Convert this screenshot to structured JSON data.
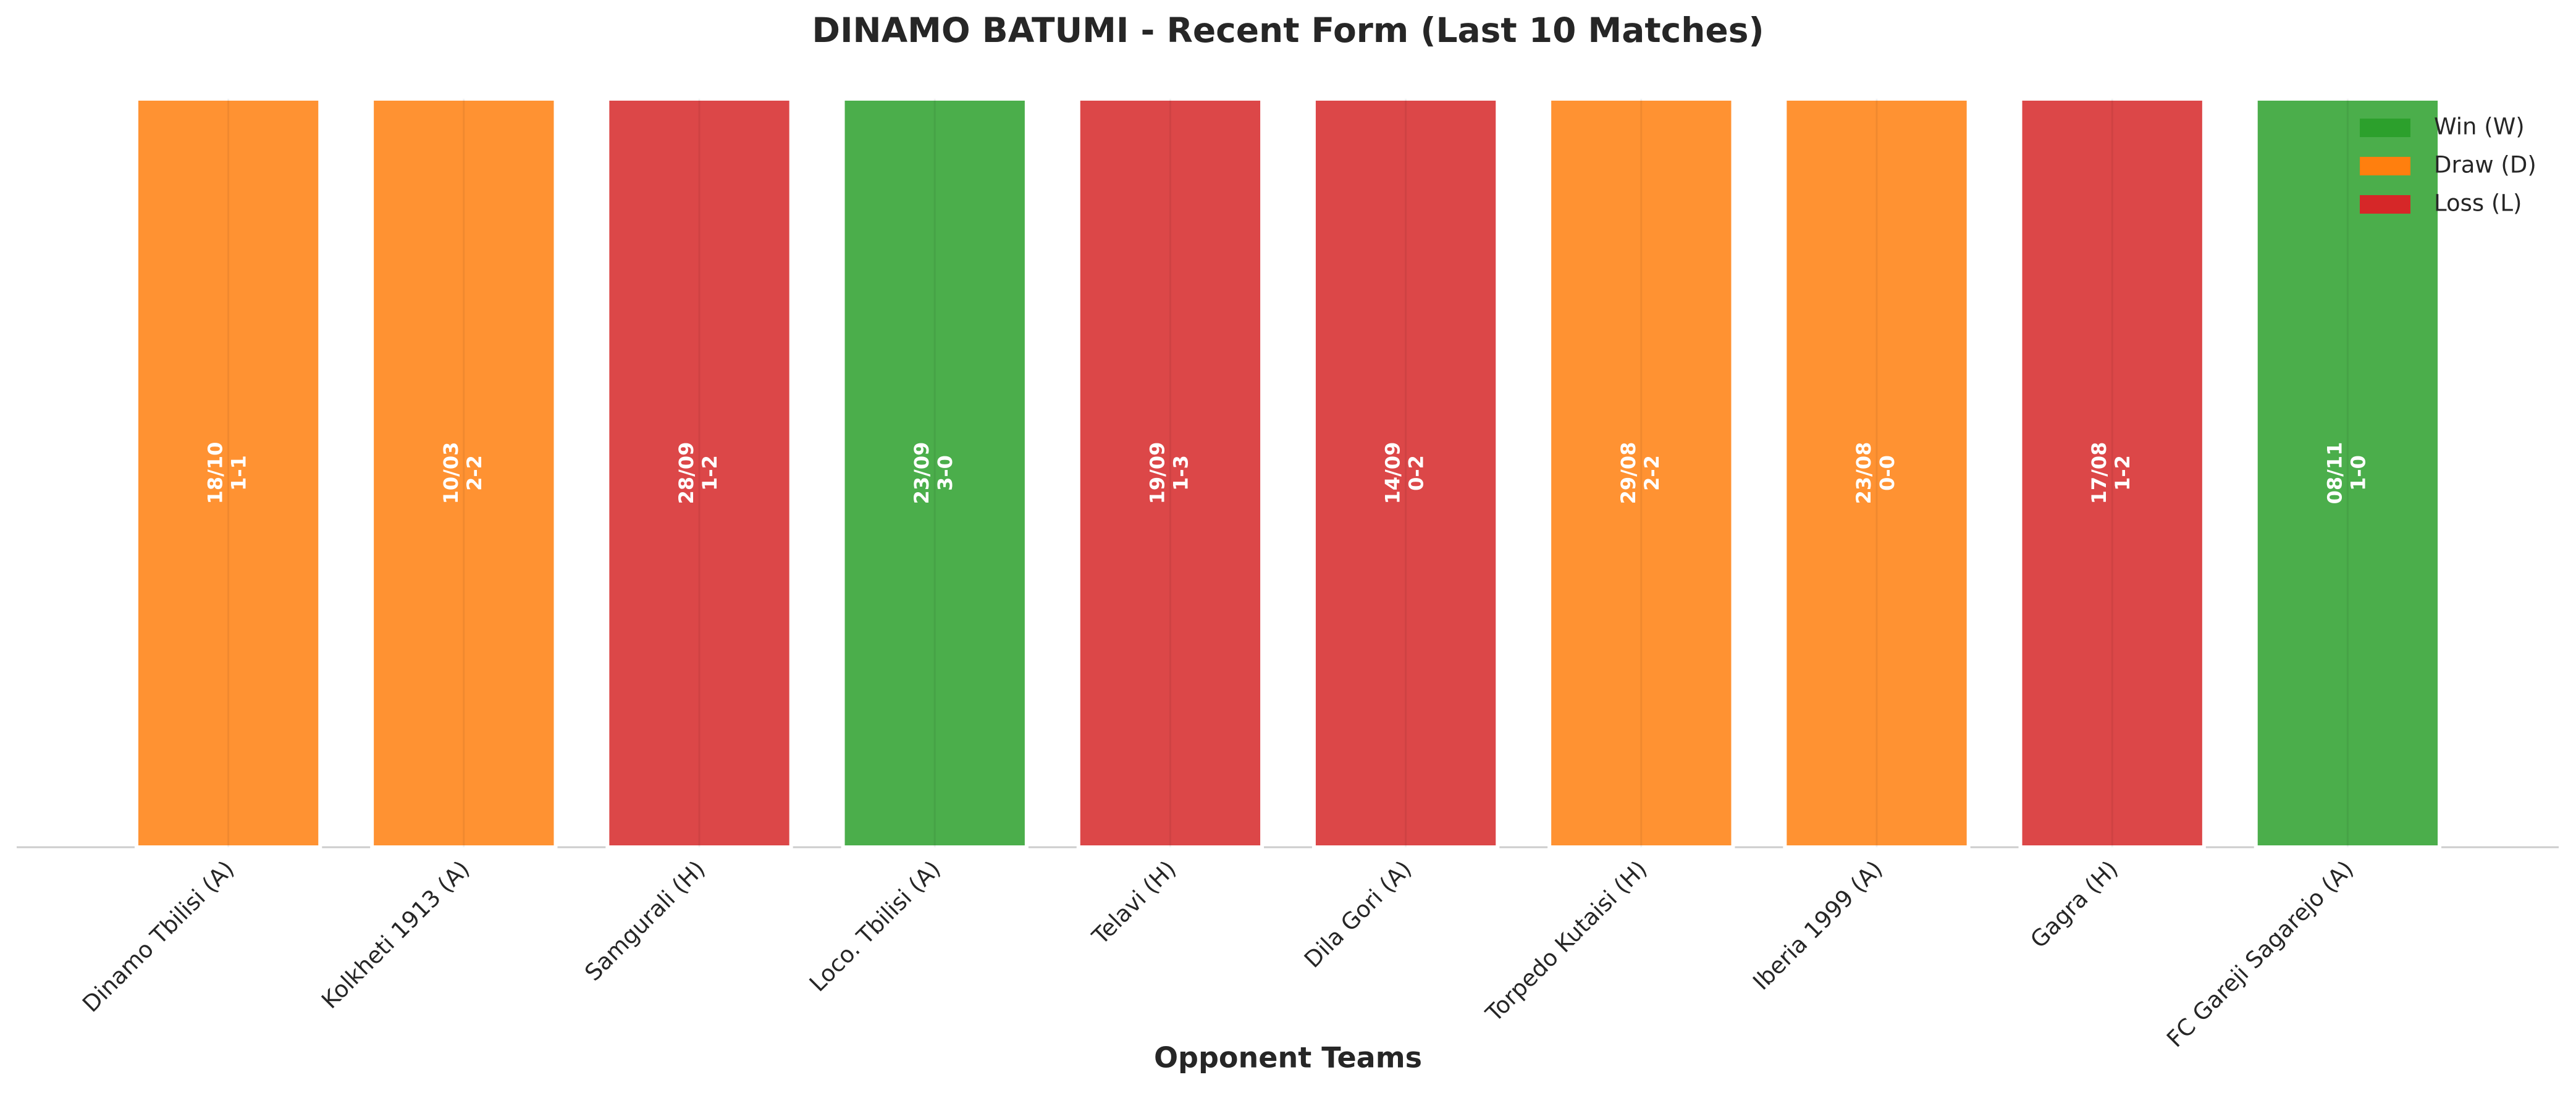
{
  "chart_data": {
    "type": "bar",
    "title": "DINAMO BATUMI - Recent Form (Last 10 Matches)",
    "x_label": "Opponent Teams",
    "categories": [
      "Dinamo Tbilisi (A)",
      "Kolkheti 1913 (A)",
      "Samgurali (H)",
      "Loco. Tbilisi (A)",
      "Telavi (H)",
      "Dila Gori (A)",
      "Torpedo Kutaisi (H)",
      "Iberia 1999 (A)",
      "Gagra (H)",
      "FC Gareji Sagarejo (A)"
    ],
    "values": [
      1,
      1,
      1,
      1,
      1,
      1,
      1,
      1,
      1,
      1
    ],
    "results": [
      "D",
      "D",
      "L",
      "W",
      "L",
      "L",
      "D",
      "D",
      "L",
      "W"
    ],
    "dates": [
      "18/10",
      "10/03",
      "28/09",
      "23/09",
      "19/09",
      "14/09",
      "29/08",
      "23/08",
      "17/08",
      "08/11"
    ],
    "scores": [
      "1-1",
      "2-2",
      "1-2",
      "3-0",
      "1-3",
      "0-2",
      "2-2",
      "0-0",
      "1-2",
      "1-0"
    ],
    "ylim": [
      0,
      1
    ],
    "legend_position": "upper right",
    "legend": [
      {
        "name": "Win (W)",
        "result": "W",
        "color": "#2ca02c"
      },
      {
        "name": "Draw (D)",
        "result": "D",
        "color": "#ff7f0e"
      },
      {
        "name": "Loss (L)",
        "result": "L",
        "color": "#d62728"
      }
    ]
  }
}
